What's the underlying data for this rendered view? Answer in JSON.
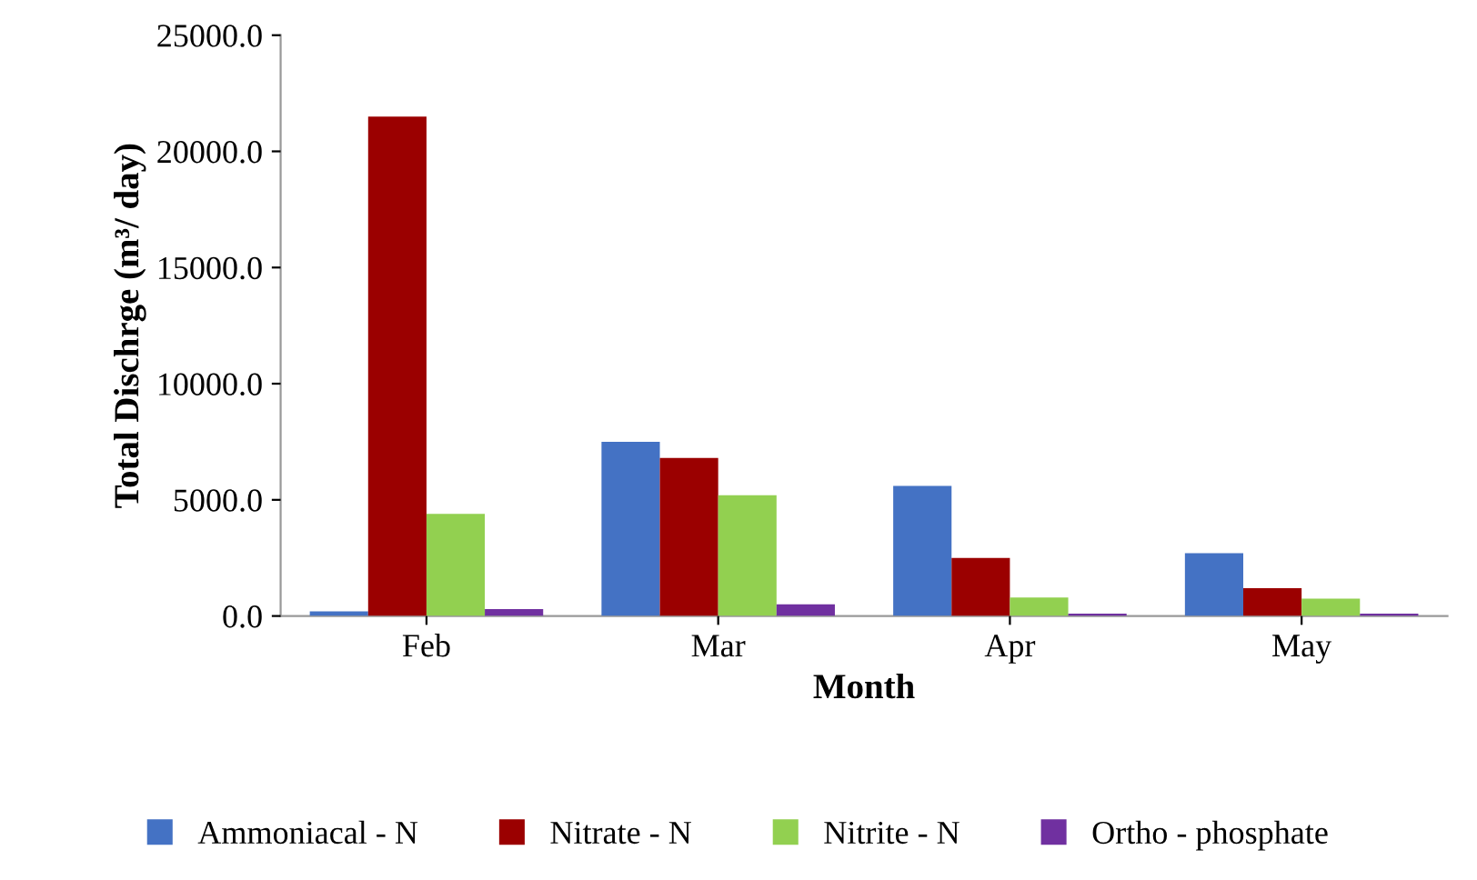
{
  "chart_data": {
    "type": "bar",
    "xlabel": "Month",
    "ylabel": "Total Dischrge (m³/ day)",
    "categories": [
      "Feb",
      "Mar",
      "Apr",
      "May"
    ],
    "series": [
      {
        "name": "Ammoniacal - N",
        "color": "#4472c4",
        "values": [
          200,
          7500,
          5600,
          2700
        ]
      },
      {
        "name": "Nitrate - N",
        "color": "#9b0000",
        "values": [
          21500,
          6800,
          2500,
          1200
        ]
      },
      {
        "name": "Nitrite - N",
        "color": "#92d050",
        "values": [
          4400,
          5200,
          800,
          750
        ]
      },
      {
        "name": "Ortho - phosphate",
        "color": "#7030a0",
        "values": [
          300,
          500,
          100,
          100
        ]
      }
    ],
    "ylim": [
      0,
      25000
    ],
    "yticks": [
      {
        "value": 0,
        "label": "0.0"
      },
      {
        "value": 5000,
        "label": "5000.0"
      },
      {
        "value": 10000,
        "label": "10000.0"
      },
      {
        "value": 15000,
        "label": "15000.0"
      },
      {
        "value": 20000,
        "label": "20000.0"
      },
      {
        "value": 25000,
        "label": "25000.0"
      }
    ],
    "grid": false,
    "legend": "bottom"
  }
}
